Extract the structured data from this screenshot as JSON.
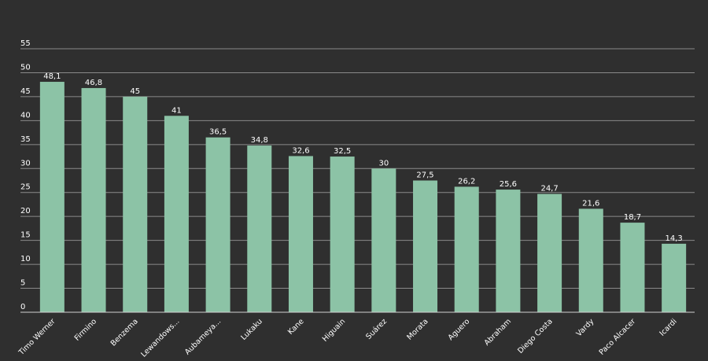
{
  "chart_data": {
    "type": "bar",
    "title": "",
    "xlabel": "",
    "ylabel": "",
    "ylim": [
      0,
      55
    ],
    "yticks": [
      0,
      5,
      10,
      15,
      20,
      25,
      30,
      35,
      40,
      45,
      50,
      55
    ],
    "grid": true,
    "legend": "none",
    "categories": [
      "Timo Werner",
      "Firmino",
      "Benzema",
      "Lewandows...",
      "Aubameya...",
      "Lukaku",
      "Kane",
      "Higuain",
      "Suárez",
      "Morata",
      "Aguero",
      "Abraham",
      "Diego Costa",
      "Vardy",
      "Paco Alcacer",
      "Icardi"
    ],
    "values": [
      48.1,
      46.8,
      45,
      41,
      36.5,
      34.8,
      32.6,
      32.5,
      30,
      27.5,
      26.2,
      25.6,
      24.7,
      21.6,
      18.7,
      14.3
    ],
    "value_labels": [
      "48,1",
      "46,8",
      "45",
      "41",
      "36,5",
      "34,8",
      "32,6",
      "32,5",
      "30",
      "27,5",
      "26,2",
      "25,6",
      "24,7",
      "21,6",
      "18,7",
      "14,3"
    ],
    "colors": {
      "background": "#2f2f2f",
      "bar": "#8cc3a6",
      "grid": "#8a8a8a",
      "text": "#ffffff"
    }
  }
}
